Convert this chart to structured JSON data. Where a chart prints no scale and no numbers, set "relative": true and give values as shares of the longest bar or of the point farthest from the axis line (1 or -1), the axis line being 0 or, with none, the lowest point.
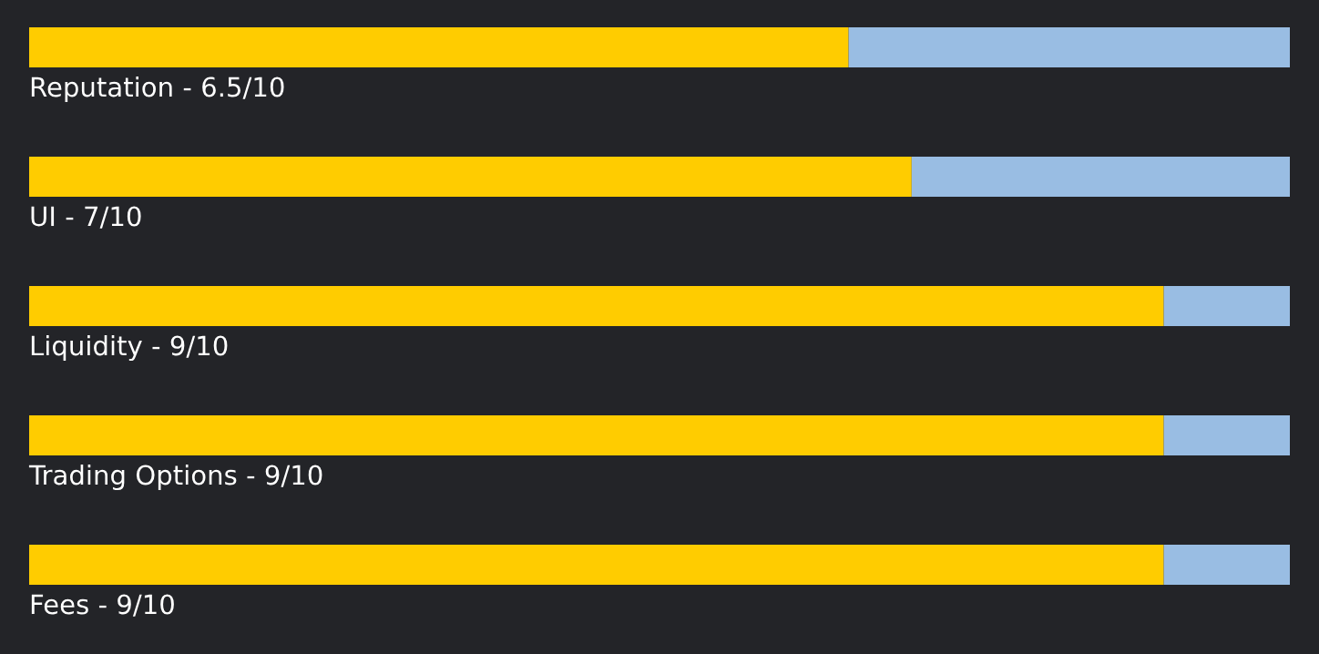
{
  "chart_data": {
    "type": "bar",
    "orientation": "horizontal",
    "stacked": true,
    "relative": true,
    "categories": [
      "Reputation - 6.5/10",
      "UI - 7/10",
      "Liquidity - 9/10",
      "Trading Options - 9/10",
      "Fees - 9/10"
    ],
    "series": [
      {
        "color": "#ffcc00",
        "values": [
          0.65,
          0.7,
          0.9,
          0.9,
          0.9
        ]
      },
      {
        "color": "#99bde3",
        "values": [
          0.35,
          0.3,
          0.1,
          0.1,
          0.1
        ]
      }
    ]
  }
}
